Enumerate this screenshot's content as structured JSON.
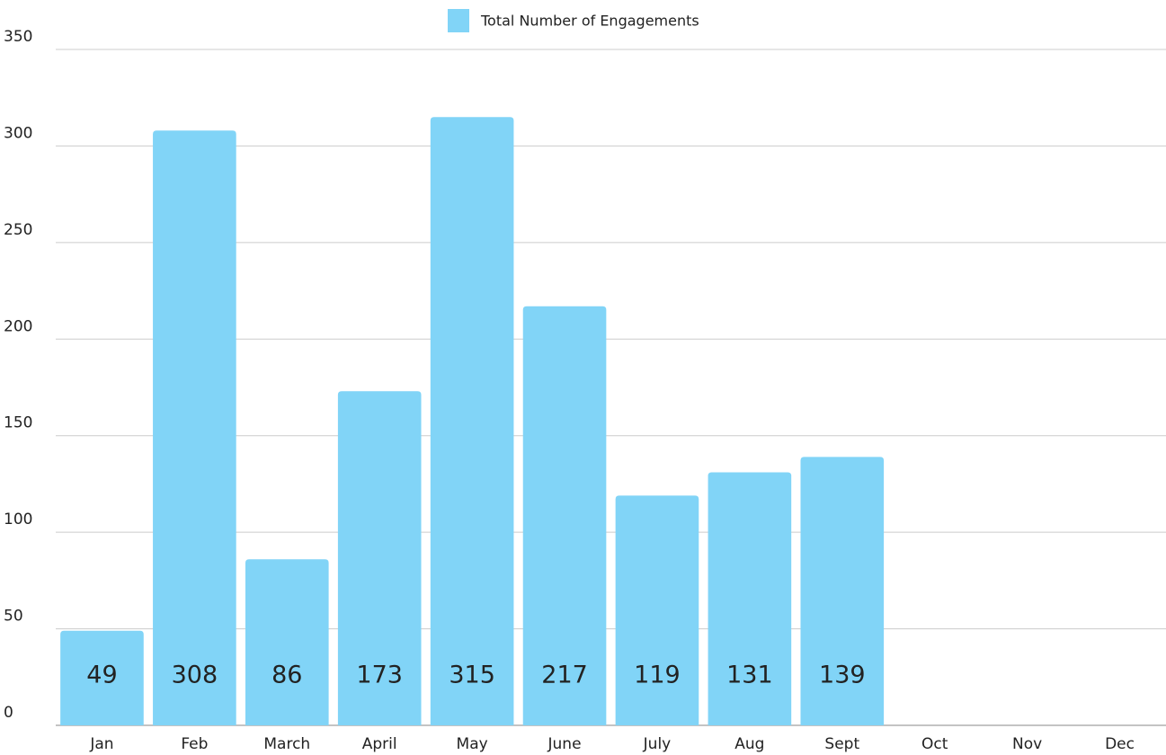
{
  "chart_data": {
    "type": "bar",
    "categories": [
      "Jan",
      "Feb",
      "March",
      "April",
      "May",
      "June",
      "July",
      "Aug",
      "Sept",
      "Oct",
      "Nov",
      "Dec"
    ],
    "series": [
      {
        "name": "Total Number of Engagements",
        "color": "#81d4f7",
        "values": [
          49,
          308,
          86,
          173,
          315,
          217,
          119,
          131,
          139,
          null,
          null,
          null
        ]
      }
    ],
    "ylim": [
      0,
      350
    ],
    "yticks": [
      0,
      50,
      100,
      150,
      200,
      250,
      300,
      350
    ],
    "grid": true,
    "legend": "top"
  }
}
